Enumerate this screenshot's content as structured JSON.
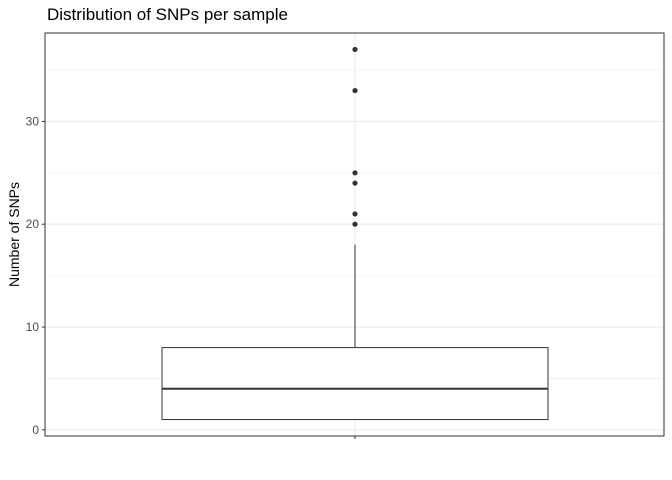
{
  "chart_data": {
    "type": "box",
    "title": "Distribution of SNPs per sample",
    "xlabel": "",
    "ylabel": "Number of SNPs",
    "ylim": [
      -0.6,
      38.6
    ],
    "yticks": [
      0,
      10,
      20,
      30
    ],
    "grid": true,
    "legend": "none",
    "box": {
      "min": 1,
      "q1": 1,
      "median": 4,
      "q3": 8,
      "max": 18,
      "outliers": [
        20,
        21,
        24,
        25,
        33,
        37
      ]
    },
    "colors": {
      "grid": "#ebebeb",
      "line": "#333333",
      "outlier": "#333333",
      "panel_border": "#333333"
    }
  }
}
